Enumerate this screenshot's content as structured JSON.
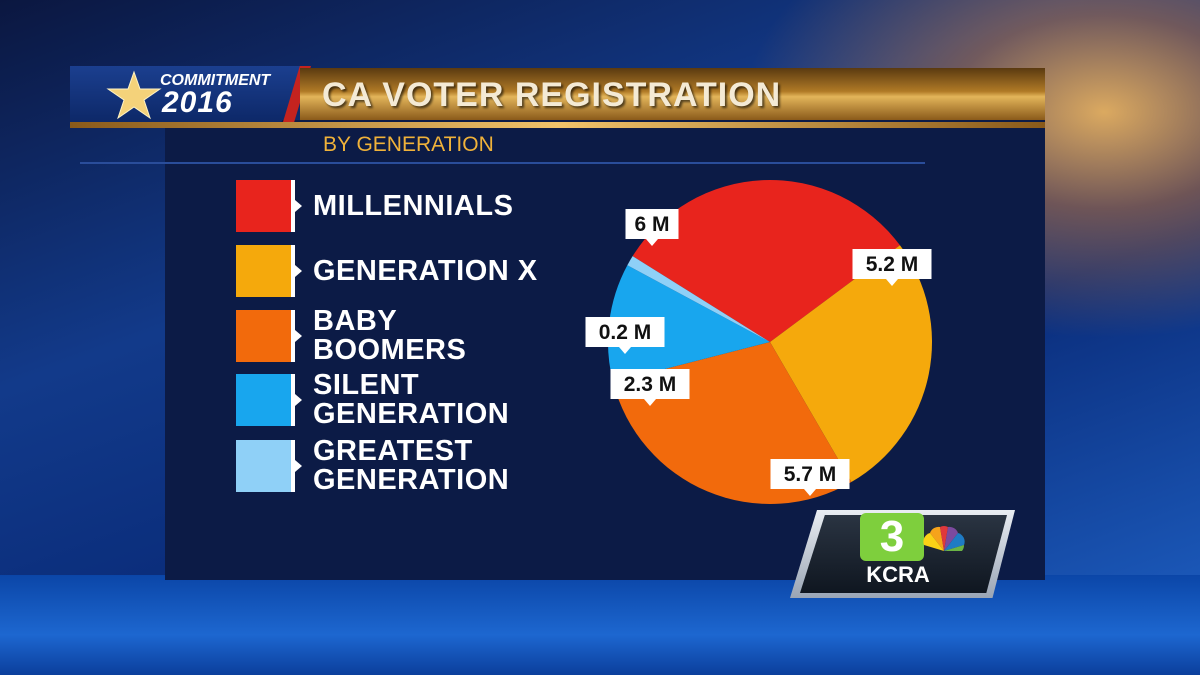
{
  "branding": {
    "logo_line1": "COMMITMENT",
    "logo_line2": "2016",
    "station_number": "3",
    "station_call": "KCRA"
  },
  "title": "CA VOTER REGISTRATION",
  "subtitle": "BY GENERATION",
  "legend": [
    {
      "label": "MILLENNIALS",
      "color": "#e8241d"
    },
    {
      "label": "GENERATION X",
      "color": "#f5a90c"
    },
    {
      "label": "BABY BOOMERS",
      "color": "#f26a0c"
    },
    {
      "label": "SILENT GENERATION",
      "color": "#18a6ee"
    },
    {
      "label": "GREATEST GENERATION",
      "color": "#8fd0f7"
    }
  ],
  "chart_data": {
    "type": "pie",
    "title": "CA VOTER REGISTRATION",
    "subtitle": "BY GENERATION",
    "unit": "M",
    "slices": [
      {
        "name": "MILLENNIALS",
        "value": 6,
        "label": "6 M",
        "color": "#e8241d"
      },
      {
        "name": "GENERATION X",
        "value": 5.2,
        "label": "5.2 M",
        "color": "#f5a90c"
      },
      {
        "name": "BABY BOOMERS",
        "value": 5.7,
        "label": "5.7 M",
        "color": "#f26a0c"
      },
      {
        "name": "SILENT GENERATION",
        "value": 2.3,
        "label": "2.3 M",
        "color": "#18a6ee"
      },
      {
        "name": "GREATEST GENERATION",
        "value": 0.2,
        "label": "0.2 M",
        "color": "#8fd0f7"
      }
    ],
    "legend_position": "left"
  }
}
